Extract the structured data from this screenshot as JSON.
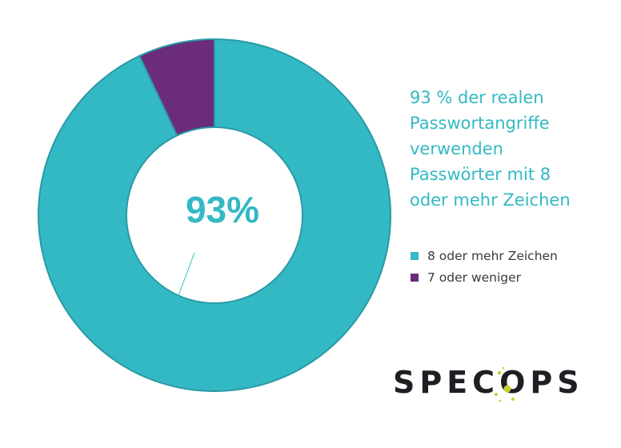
{
  "colors": {
    "accent": "#33b9c4",
    "secondary": "#6a2c7b",
    "text": "#3a3a3a",
    "logo_text": "#1e1e24",
    "logo_dot": "#c6d42e"
  },
  "headline": {
    "lines": [
      "93 % der realen",
      "Passwortangriffe",
      "verwenden",
      "Passwörter mit 8",
      "oder mehr Zeichen"
    ]
  },
  "logo": {
    "text": "SPECOPS",
    "icon": "specops-logo-dots-icon"
  },
  "chart_data": {
    "type": "pie",
    "variant": "donut",
    "center_label": "93%",
    "series": [
      {
        "name": "8 oder mehr Zeichen",
        "value": 93,
        "color": "#33b9c4"
      },
      {
        "name": "7 oder weniger",
        "value": 7,
        "color": "#6a2c7b"
      }
    ],
    "legend_position": "right"
  }
}
